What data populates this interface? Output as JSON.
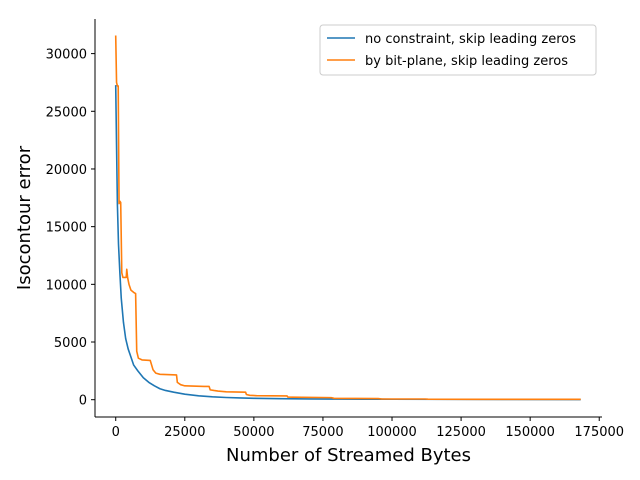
{
  "chart_data": {
    "type": "line",
    "title": "",
    "xlabel": "Number of Streamed Bytes",
    "ylabel": "Isocontour error",
    "xlim": [
      -7500,
      176000
    ],
    "ylim": [
      -1500,
      33000
    ],
    "xticks": [
      {
        "value": 0,
        "label": "0"
      },
      {
        "value": 25000,
        "label": "25000"
      },
      {
        "value": 50000,
        "label": "50000"
      },
      {
        "value": 75000,
        "label": "75000"
      },
      {
        "value": 100000,
        "label": "100000"
      },
      {
        "value": 125000,
        "label": "125000"
      },
      {
        "value": 150000,
        "label": "150000"
      },
      {
        "value": 175000,
        "label": "175000"
      }
    ],
    "yticks": [
      {
        "value": 0,
        "label": "0"
      },
      {
        "value": 5000,
        "label": "5000"
      },
      {
        "value": 10000,
        "label": "10000"
      },
      {
        "value": 15000,
        "label": "15000"
      },
      {
        "value": 20000,
        "label": "20000"
      },
      {
        "value": 25000,
        "label": "25000"
      },
      {
        "value": 30000,
        "label": "30000"
      }
    ],
    "grid": false,
    "legend_position": "top-right",
    "series": [
      {
        "name": "no constraint, skip leading zeros",
        "color": "#1f77b4",
        "points": [
          [
            0,
            27200
          ],
          [
            300,
            22000
          ],
          [
            600,
            17000
          ],
          [
            1000,
            13500
          ],
          [
            1500,
            11000
          ],
          [
            2000,
            8800
          ],
          [
            2800,
            6700
          ],
          [
            3600,
            5300
          ],
          [
            4500,
            4400
          ],
          [
            5500,
            3700
          ],
          [
            6500,
            3000
          ],
          [
            8000,
            2500
          ],
          [
            10000,
            1900
          ],
          [
            12000,
            1500
          ],
          [
            14000,
            1200
          ],
          [
            16000,
            950
          ],
          [
            18000,
            800
          ],
          [
            21000,
            650
          ],
          [
            25000,
            480
          ],
          [
            30000,
            340
          ],
          [
            35000,
            250
          ],
          [
            40000,
            190
          ],
          [
            45000,
            150
          ],
          [
            50000,
            120
          ],
          [
            60000,
            90
          ],
          [
            70000,
            70
          ],
          [
            80000,
            55
          ],
          [
            90000,
            45
          ],
          [
            100000,
            38
          ],
          [
            120000,
            28
          ],
          [
            140000,
            20
          ],
          [
            168000,
            15
          ]
        ]
      },
      {
        "name": "by bit-plane, skip leading zeros",
        "color": "#ff7f0e",
        "points": [
          [
            0,
            31500
          ],
          [
            300,
            27500
          ],
          [
            600,
            27200
          ],
          [
            900,
            27200
          ],
          [
            1200,
            17000
          ],
          [
            1500,
            17200
          ],
          [
            1800,
            17100
          ],
          [
            2200,
            11000
          ],
          [
            2600,
            10600
          ],
          [
            3200,
            10600
          ],
          [
            3800,
            10600
          ],
          [
            4000,
            11300
          ],
          [
            4300,
            10600
          ],
          [
            4800,
            10000
          ],
          [
            5500,
            9500
          ],
          [
            6500,
            9300
          ],
          [
            7200,
            9200
          ],
          [
            7600,
            4200
          ],
          [
            8200,
            3600
          ],
          [
            9500,
            3450
          ],
          [
            12500,
            3400
          ],
          [
            13500,
            2600
          ],
          [
            14500,
            2300
          ],
          [
            16000,
            2200
          ],
          [
            22000,
            2150
          ],
          [
            22300,
            1500
          ],
          [
            23500,
            1300
          ],
          [
            25000,
            1200
          ],
          [
            32000,
            1150
          ],
          [
            33800,
            1150
          ],
          [
            34200,
            850
          ],
          [
            35500,
            800
          ],
          [
            37000,
            750
          ],
          [
            40000,
            680
          ],
          [
            47000,
            650
          ],
          [
            47300,
            450
          ],
          [
            48500,
            380
          ],
          [
            51000,
            350
          ],
          [
            62000,
            330
          ],
          [
            62300,
            230
          ],
          [
            64000,
            220
          ],
          [
            78000,
            180
          ],
          [
            79000,
            120
          ],
          [
            95000,
            100
          ],
          [
            96000,
            70
          ],
          [
            112000,
            60
          ],
          [
            113000,
            40
          ],
          [
            130000,
            35
          ],
          [
            168000,
            30
          ]
        ]
      }
    ]
  }
}
